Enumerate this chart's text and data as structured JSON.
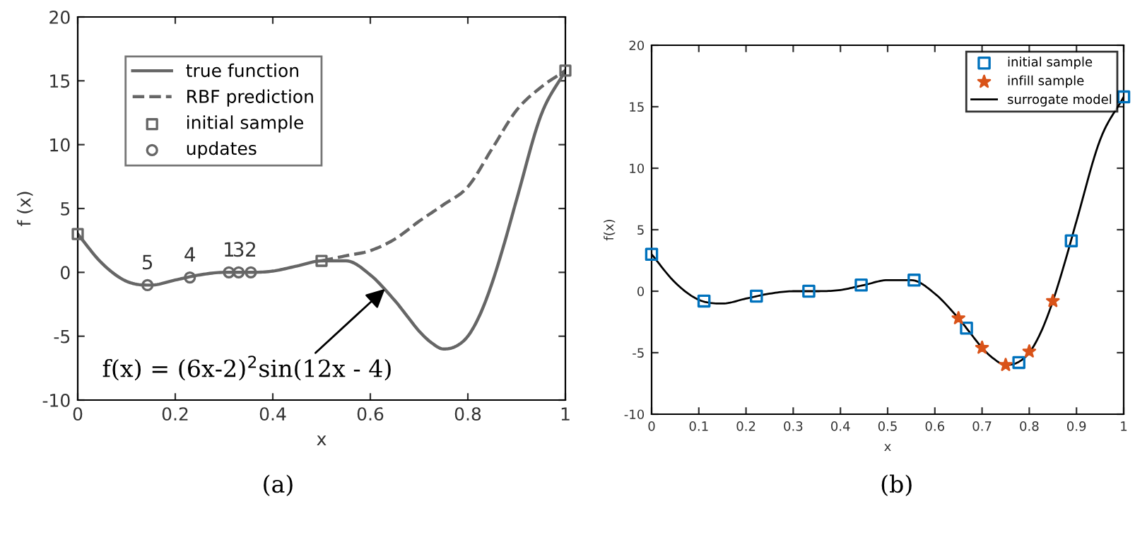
{
  "chart_data": [
    {
      "type": "line",
      "xlabel": "x",
      "ylabel": "f (x)",
      "xlim": [
        0,
        1
      ],
      "ylim": [
        -10,
        20
      ],
      "xticks": [
        0,
        0.2,
        0.4,
        0.6,
        0.8,
        1
      ],
      "yticks": [
        -10,
        -5,
        0,
        5,
        10,
        15,
        20
      ],
      "grid": false,
      "legend": "top left",
      "series": [
        {
          "name": "true function",
          "type": "line",
          "color": "#666666",
          "line_style": "solid",
          "x": [
            0,
            0.05,
            0.1,
            0.15,
            0.2,
            0.25,
            0.3,
            0.35,
            0.4,
            0.45,
            0.5,
            0.55,
            0.6,
            0.65,
            0.675,
            0.7,
            0.725,
            0.75,
            0.775,
            0.8,
            0.825,
            0.85,
            0.875,
            0.9,
            0.95,
            1
          ],
          "values": [
            3.0,
            0.7,
            -0.7,
            -1.0,
            -0.6,
            -0.2,
            0.0,
            0.0,
            0.1,
            0.5,
            0.9,
            0.9,
            -0.2,
            -2.2,
            -3.4,
            -4.6,
            -5.5,
            -6.0,
            -5.8,
            -5.0,
            -3.3,
            -0.8,
            2.3,
            5.7,
            12.3,
            15.8
          ]
        },
        {
          "name": "RBF prediction",
          "type": "line",
          "color": "#666666",
          "line_style": "dashed",
          "x": [
            0.5,
            0.55,
            0.6,
            0.65,
            0.7,
            0.75,
            0.8,
            0.85,
            0.9,
            0.95,
            1
          ],
          "values": [
            0.9,
            1.3,
            1.7,
            2.6,
            4.0,
            5.3,
            6.7,
            9.7,
            12.7,
            14.5,
            15.8
          ]
        },
        {
          "name": "initial sample",
          "type": "scatter",
          "color": "#666666",
          "marker": "square",
          "x": [
            0,
            0.5,
            1
          ],
          "values": [
            3.0,
            0.9,
            15.8
          ]
        },
        {
          "name": "updates",
          "type": "scatter",
          "color": "#666666",
          "marker": "circle",
          "x": [
            0.143,
            0.23,
            0.31,
            0.33,
            0.355
          ],
          "values": [
            -1.0,
            -0.4,
            0.0,
            0.0,
            0.0
          ]
        }
      ],
      "annotations": [
        {
          "text": "5",
          "x": 0.143,
          "y": -1.0
        },
        {
          "text": "4",
          "x": 0.23,
          "y": -0.4
        },
        {
          "text": "1",
          "x": 0.31,
          "y": 0.0
        },
        {
          "text": "3",
          "x": 0.33,
          "y": 0.0
        },
        {
          "text": "2",
          "x": 0.355,
          "y": 0.0
        },
        {
          "text": "f(x) = (6x-2)$^{2}$sin(12x - 4)",
          "x": 0.63,
          "y": -1.3
        },
        "(a)"
      ]
    },
    {
      "type": "line",
      "xlabel": "x",
      "ylabel": "f(x)",
      "xlim": [
        0,
        1
      ],
      "ylim": [
        -10,
        20
      ],
      "xticks": [
        0,
        0.1,
        0.2,
        0.3,
        0.4,
        0.5,
        0.6,
        0.7,
        0.8,
        0.9,
        1
      ],
      "yticks": [
        -10,
        -5,
        0,
        5,
        10,
        15,
        20
      ],
      "grid": false,
      "legend": "top right",
      "series": [
        {
          "name": "initial sample",
          "type": "scatter",
          "color": "#0072bd",
          "marker": "square",
          "x": [
            0,
            0.111,
            0.222,
            0.333,
            0.444,
            0.556,
            0.667,
            0.778,
            0.889,
            1
          ],
          "values": [
            3.0,
            -0.8,
            -0.4,
            0.0,
            0.5,
            0.9,
            -3.0,
            -5.8,
            4.1,
            15.8
          ]
        },
        {
          "name": "infill sample",
          "type": "scatter",
          "color": "#d95319",
          "marker": "star",
          "x": [
            0.65,
            0.7,
            0.75,
            0.8,
            0.85
          ],
          "values": [
            -2.2,
            -4.6,
            -6.0,
            -4.9,
            -0.8
          ]
        },
        {
          "name": "surrogate model",
          "color": "#000000",
          "line_style": "solid",
          "x": [
            0,
            0.05,
            0.1,
            0.15,
            0.2,
            0.25,
            0.3,
            0.35,
            0.4,
            0.45,
            0.5,
            0.55,
            0.6,
            0.65,
            0.675,
            0.7,
            0.725,
            0.75,
            0.775,
            0.8,
            0.825,
            0.85,
            0.875,
            0.9,
            0.95,
            1
          ],
          "values": [
            3.0,
            0.7,
            -0.7,
            -1.0,
            -0.6,
            -0.2,
            0.0,
            0.0,
            0.1,
            0.5,
            0.9,
            0.9,
            -0.2,
            -2.2,
            -3.4,
            -4.6,
            -5.5,
            -6.0,
            -5.8,
            -5.0,
            -3.3,
            -0.8,
            2.3,
            5.7,
            12.3,
            15.8
          ]
        }
      ],
      "annotations": [
        "(b)"
      ]
    }
  ]
}
